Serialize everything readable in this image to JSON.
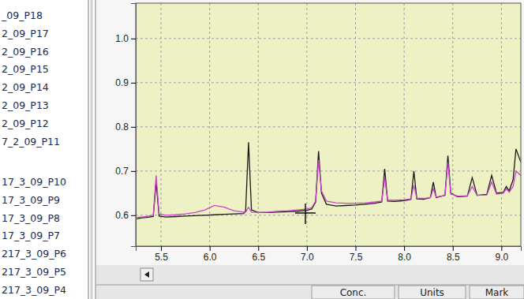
{
  "chart_data": {
    "type": "line",
    "x": [
      5.25,
      5.3,
      5.35,
      5.42,
      5.45,
      5.48,
      5.55,
      5.65,
      5.75,
      5.85,
      5.95,
      6.05,
      6.15,
      6.25,
      6.35,
      6.37,
      6.4,
      6.43,
      6.5,
      6.6,
      6.7,
      6.8,
      6.9,
      7.0,
      7.05,
      7.09,
      7.12,
      7.15,
      7.2,
      7.3,
      7.4,
      7.5,
      7.6,
      7.7,
      7.77,
      7.8,
      7.83,
      7.9,
      8.0,
      8.07,
      8.1,
      8.13,
      8.2,
      8.27,
      8.3,
      8.33,
      8.42,
      8.45,
      8.48,
      8.55,
      8.65,
      8.7,
      8.75,
      8.85,
      8.9,
      8.95,
      9.02,
      9.05,
      9.08,
      9.12,
      9.15,
      9.2
    ],
    "series": [
      {
        "color": "#1a1a1a",
        "values": [
          0.592,
          0.594,
          0.595,
          0.597,
          0.675,
          0.598,
          0.596,
          0.597,
          0.598,
          0.599,
          0.6,
          0.601,
          0.602,
          0.603,
          0.604,
          0.61,
          0.765,
          0.612,
          0.606,
          0.606,
          0.607,
          0.608,
          0.609,
          0.611,
          0.614,
          0.63,
          0.745,
          0.65,
          0.625,
          0.621,
          0.622,
          0.623,
          0.625,
          0.627,
          0.63,
          0.705,
          0.632,
          0.631,
          0.633,
          0.636,
          0.7,
          0.637,
          0.636,
          0.64,
          0.675,
          0.64,
          0.645,
          0.735,
          0.65,
          0.642,
          0.643,
          0.685,
          0.645,
          0.647,
          0.69,
          0.65,
          0.652,
          0.665,
          0.655,
          0.68,
          0.75,
          0.72
        ]
      },
      {
        "color": "#cc44cc",
        "values": [
          0.595,
          0.596,
          0.597,
          0.6,
          0.69,
          0.603,
          0.6,
          0.601,
          0.603,
          0.606,
          0.612,
          0.622,
          0.618,
          0.61,
          0.607,
          0.607,
          0.618,
          0.607,
          0.606,
          0.607,
          0.609,
          0.61,
          0.612,
          0.614,
          0.617,
          0.632,
          0.725,
          0.655,
          0.632,
          0.628,
          0.627,
          0.627,
          0.628,
          0.63,
          0.632,
          0.685,
          0.634,
          0.634,
          0.635,
          0.637,
          0.668,
          0.638,
          0.638,
          0.64,
          0.66,
          0.641,
          0.645,
          0.72,
          0.648,
          0.643,
          0.644,
          0.665,
          0.645,
          0.646,
          0.675,
          0.648,
          0.65,
          0.66,
          0.652,
          0.665,
          0.7,
          0.69
        ]
      }
    ],
    "xlim": [
      5.24,
      9.2
    ],
    "xticks": [
      5.5,
      {
        "value": 6,
        "label": "6.0"
      },
      6.5,
      {
        "value": 7,
        "label": "7.0"
      },
      7.5,
      {
        "value": 8,
        "label": "8.0"
      },
      8.5,
      {
        "value": 9,
        "label": "9.0"
      }
    ],
    "ylim": [
      0.53,
      1.08
    ],
    "yticks": [
      0.6,
      0.7,
      0.8,
      0.9,
      {
        "value": 1,
        "label": "1.0"
      }
    ],
    "grid": true
  },
  "sample_list": {
    "groups": [
      [
        "_09_P18",
        "2_09_P17",
        "2_09_P16",
        "2_09_P15",
        "2_09_P14",
        "2_09_P13",
        "2_09_P12",
        "7_2_09_P11"
      ],
      [
        "17_3_09_P10",
        "17_3_09_P9",
        "17_3_09_P8",
        "17_3_09_P7",
        "217_3_09_P6",
        "217_3_09_P5",
        "217_3_09_P4"
      ]
    ]
  },
  "results_table": {
    "columns": [
      "Conc.",
      "Units",
      "Mark"
    ]
  }
}
